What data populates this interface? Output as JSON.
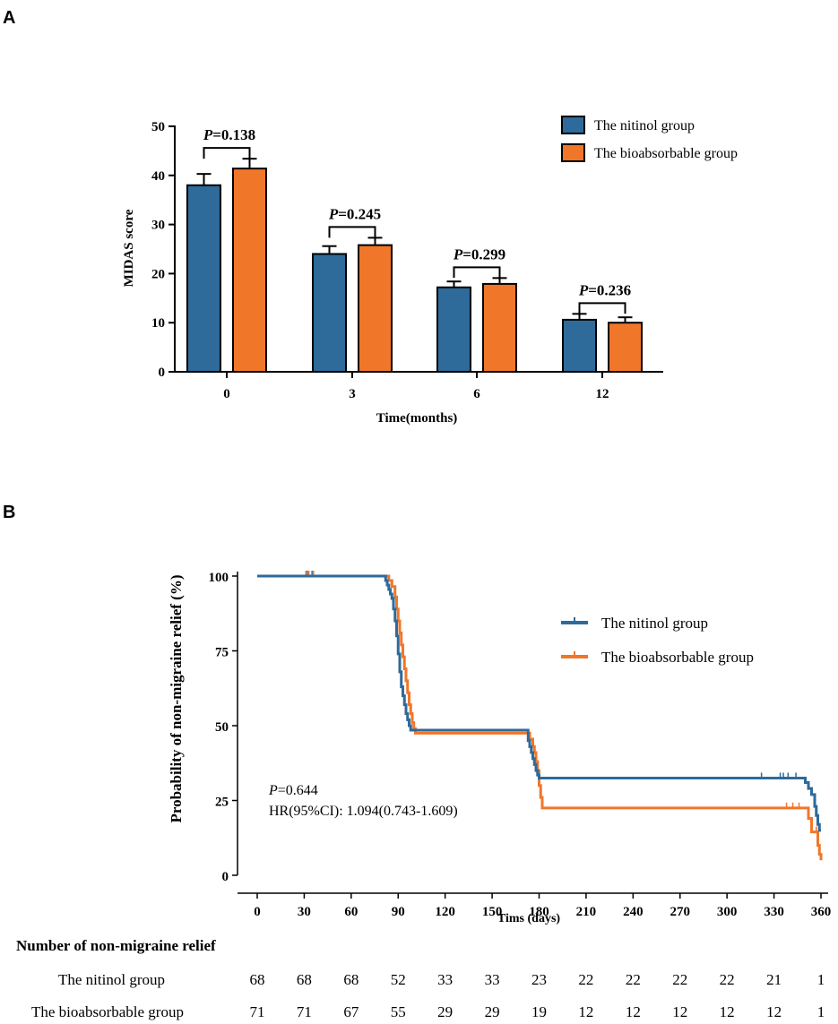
{
  "colors": {
    "nitinol": "#2E6A9A",
    "bioabsorbable": "#F0762A",
    "axis": "#000000"
  },
  "chart_data": [
    {
      "panel_label": "A",
      "type": "bar",
      "xlabel": "Time(months)",
      "ylabel": "MIDAS score",
      "ylim": [
        0,
        50
      ],
      "yticks": [
        0,
        10,
        20,
        30,
        40,
        50
      ],
      "categories": [
        "0",
        "3",
        "6",
        "12"
      ],
      "series": [
        {
          "name": "The nitinol group",
          "values": [
            38.0,
            24.0,
            17.2,
            10.6
          ],
          "errors": [
            2.3,
            1.6,
            1.2,
            1.2
          ]
        },
        {
          "name": "The bioabsorbable group",
          "values": [
            41.4,
            25.8,
            17.9,
            10.0
          ],
          "errors": [
            2.0,
            1.5,
            1.2,
            1.1
          ]
        }
      ],
      "p_label": "P",
      "p_values": [
        "=0.138",
        "=0.245",
        "=0.299",
        "=0.236"
      ],
      "legend_position": "top-right"
    },
    {
      "panel_label": "B",
      "type": "line",
      "subtype": "kaplan-meier",
      "xlabel": "Tims   (days)",
      "ylabel": "Probability of non-migraine relief (%)",
      "xlim": [
        0,
        360
      ],
      "ylim": [
        0,
        100
      ],
      "xticks": [
        0,
        30,
        60,
        90,
        120,
        150,
        180,
        210,
        240,
        270,
        300,
        330,
        360
      ],
      "yticks": [
        0,
        25,
        50,
        75,
        100
      ],
      "series": [
        {
          "name": "The nitinol group",
          "steps": [
            [
              0,
              100
            ],
            [
              81,
              100
            ],
            [
              82,
              98.5
            ],
            [
              83,
              97
            ],
            [
              84,
              95.5
            ],
            [
              85,
              94
            ],
            [
              86,
              92.5
            ],
            [
              87,
              89
            ],
            [
              88,
              85
            ],
            [
              89,
              80
            ],
            [
              90,
              74
            ],
            [
              91,
              68
            ],
            [
              92,
              63
            ],
            [
              93,
              60
            ],
            [
              94,
              57
            ],
            [
              95,
              54
            ],
            [
              96,
              52
            ],
            [
              97,
              50
            ],
            [
              98,
              48.5
            ],
            [
              172,
              48.5
            ],
            [
              173,
              45
            ],
            [
              174,
              43
            ],
            [
              175,
              41
            ],
            [
              176,
              39
            ],
            [
              177,
              37
            ],
            [
              178,
              35
            ],
            [
              179,
              33.5
            ],
            [
              180,
              32.5
            ],
            [
              349,
              32.5
            ],
            [
              350,
              31
            ],
            [
              352,
              29
            ],
            [
              354,
              27
            ],
            [
              356,
              23
            ],
            [
              357,
              20
            ],
            [
              358,
              17
            ],
            [
              359,
              15
            ],
            [
              360,
              15
            ]
          ],
          "censored": [
            [
              32,
              100
            ],
            [
              35,
              100
            ],
            [
              322,
              32.5
            ],
            [
              334,
              32.5
            ],
            [
              336,
              32.5
            ],
            [
              339,
              32.5
            ],
            [
              344,
              32.5
            ]
          ]
        },
        {
          "name": "The bioabsorbable group",
          "steps": [
            [
              0,
              100
            ],
            [
              83,
              100
            ],
            [
              84,
              98.5
            ],
            [
              86,
              96.5
            ],
            [
              88,
              93
            ],
            [
              89,
              89
            ],
            [
              90,
              85
            ],
            [
              91,
              81
            ],
            [
              92,
              77
            ],
            [
              93,
              73
            ],
            [
              94,
              69
            ],
            [
              95,
              65
            ],
            [
              96,
              61
            ],
            [
              97,
              57
            ],
            [
              98,
              54
            ],
            [
              99,
              51
            ],
            [
              100,
              49
            ],
            [
              101,
              47.5
            ],
            [
              173,
              47.5
            ],
            [
              174,
              45.5
            ],
            [
              176,
              43
            ],
            [
              177,
              41
            ],
            [
              178,
              38
            ],
            [
              179,
              35
            ],
            [
              180,
              30
            ],
            [
              181,
              26
            ],
            [
              182,
              22.5
            ],
            [
              349,
              22.5
            ],
            [
              352,
              19
            ],
            [
              354,
              14.5
            ],
            [
              357,
              14.5
            ],
            [
              358,
              10
            ],
            [
              359,
              7
            ],
            [
              360,
              5
            ]
          ],
          "censored": [
            [
              31,
              100
            ],
            [
              33,
              100
            ],
            [
              36,
              100
            ],
            [
              338,
              22.5
            ],
            [
              342,
              22.5
            ],
            [
              346,
              22.5
            ],
            [
              357,
              14.5
            ]
          ]
        }
      ],
      "annotation": {
        "p_label": "P",
        "p_value": "=0.644",
        "hr": "HR(95%CI): 1.094(0.743-1.609)"
      },
      "legend_position": "top-right"
    }
  ],
  "risk_table": {
    "title": "Number of non-migraine relief",
    "rows": [
      {
        "name": "The nitinol group",
        "values": [
          "68",
          "68",
          "68",
          "52",
          "33",
          "33",
          "23",
          "22",
          "22",
          "22",
          "22",
          "21",
          "1"
        ]
      },
      {
        "name": "The bioabsorbable group",
        "values": [
          "71",
          "71",
          "67",
          "55",
          "29",
          "29",
          "19",
          "12",
          "12",
          "12",
          "12",
          "12",
          "1"
        ]
      }
    ]
  }
}
